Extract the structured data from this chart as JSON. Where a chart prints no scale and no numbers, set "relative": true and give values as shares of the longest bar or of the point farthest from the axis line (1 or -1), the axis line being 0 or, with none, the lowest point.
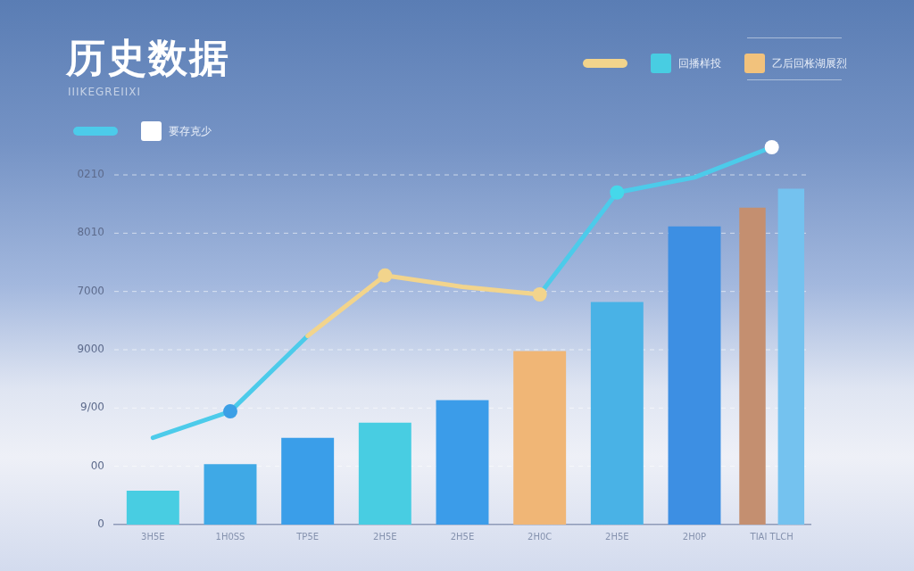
{
  "chart_data": {
    "type": "bar",
    "title": "历史数据",
    "subtitle": "IIIKEGREIIXI",
    "relative": true,
    "categories": [
      "3H5E",
      "1H0SS",
      "TP5E",
      "2H5E",
      "2H5E",
      "2H0C",
      "2H5E",
      "2H0P",
      "TIAI TLCH"
    ],
    "series": [
      {
        "type": "line",
        "color": "#4ccbea",
        "marker": "none",
        "values": [
          0.23,
          0.3,
          0.5,
          null,
          null,
          0.61,
          0.88,
          0.92,
          1
        ]
      },
      {
        "type": "scatter",
        "name": "要存克少",
        "color": "#ffffff",
        "values": [
          null,
          null,
          null,
          null,
          null,
          null,
          null,
          null,
          1
        ]
      },
      {
        "type": "line",
        "color": "#f2d48c",
        "marker": "none",
        "values": [
          null,
          null,
          0.5,
          0.66,
          0.63,
          0.61,
          null,
          null,
          null
        ]
      },
      {
        "type": "scatter",
        "color": "#45d8ea",
        "colors": [
          null,
          "#3b9fe6",
          null,
          "#f2d48c",
          null,
          "#f2d48c",
          "#45d8ea",
          null,
          null
        ],
        "values": [
          null,
          0.3,
          null,
          0.66,
          null,
          0.61,
          0.88,
          null,
          null
        ]
      },
      {
        "name": "回播样投",
        "color": "#48cde2",
        "colors": [
          "#48cde2",
          "#3fa9e6",
          "#3a9ee9",
          "#48cde2",
          "#3b9ce9",
          null,
          "#49b2e6",
          "#3d8fe3",
          "#74c2ef"
        ],
        "values": [
          0.09,
          0.16,
          0.23,
          0.27,
          0.33,
          null,
          0.59,
          0.79,
          0.89
        ]
      },
      {
        "name": "乙后回枨湖展烈",
        "color": "#f2c27c",
        "colors": [
          null,
          null,
          null,
          null,
          null,
          "#f0b676",
          null,
          null,
          "#c48f70"
        ],
        "values": [
          null,
          null,
          null,
          null,
          null,
          0.46,
          null,
          null,
          0.84
        ]
      }
    ],
    "annotations": [
      "0",
      "00",
      "9/00",
      "9000",
      "7000",
      "8010",
      "0210"
    ],
    "grid": "y",
    "legend": "top",
    "marker": "circle"
  }
}
